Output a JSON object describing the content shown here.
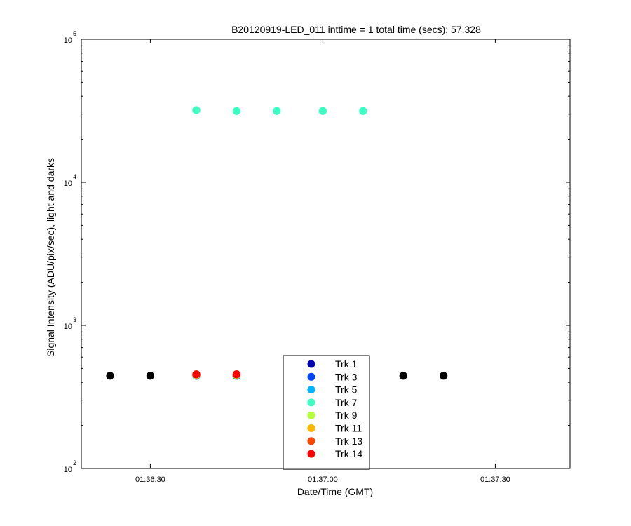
{
  "chart_data": {
    "type": "scatter",
    "title": "B20120919-LED_011 inttime = 1 total time (secs): 57.328",
    "xlabel": "Date/Time (GMT)",
    "ylabel": "Signal Intensity (ADU/pix/sec), light and darks",
    "yscale": "log",
    "ylim": [
      100,
      100000
    ],
    "xlim": [
      "01:36:18",
      "01:37:43"
    ],
    "x_ticks": [
      "01:36:30",
      "01:37:00",
      "01:37:30"
    ],
    "y_ticks": [
      {
        "value": 100,
        "base": "10",
        "exp": "2"
      },
      {
        "value": 1000,
        "base": "10",
        "exp": "3"
      },
      {
        "value": 10000,
        "base": "10",
        "exp": "4"
      },
      {
        "value": 100000,
        "base": "10",
        "exp": "5"
      }
    ],
    "grid": false,
    "legend_position": "bottom-center",
    "series": [
      {
        "name": "Trk 1",
        "color": "#0000b4",
        "x": [
          "01:36:38",
          "01:36:45",
          "01:37:07"
        ],
        "y": [
          445,
          445,
          445
        ]
      },
      {
        "name": "Trk 3",
        "color": "#0046ff",
        "x": [
          "01:36:38",
          "01:36:45",
          "01:37:07"
        ],
        "y": [
          445,
          445,
          445
        ]
      },
      {
        "name": "Trk 5",
        "color": "#00b4ff",
        "x": [
          "01:36:38",
          "01:36:45",
          "01:37:07"
        ],
        "y": [
          445,
          445,
          445
        ]
      },
      {
        "name": "Trk 7",
        "color": "#3cffc3",
        "x": [
          "01:36:38",
          "01:36:45",
          "01:36:52",
          "01:37:00",
          "01:37:07"
        ],
        "y": [
          32000,
          31500,
          31500,
          31500,
          31500
        ]
      },
      {
        "name": "Trk 9",
        "color": "#b4ff3c",
        "x": [
          "01:36:38",
          "01:36:45",
          "01:37:07"
        ],
        "y": [
          450,
          450,
          450
        ]
      },
      {
        "name": "Trk 11",
        "color": "#ffb400",
        "x": [
          "01:36:38",
          "01:36:45",
          "01:37:07"
        ],
        "y": [
          452,
          452,
          452
        ]
      },
      {
        "name": "Trk 13",
        "color": "#ff4600",
        "x": [
          "01:36:38",
          "01:36:45",
          "01:37:07"
        ],
        "y": [
          455,
          455,
          455
        ]
      },
      {
        "name": "Trk 14",
        "color": "#ff0000",
        "x": [
          "01:36:38",
          "01:36:45",
          "01:37:07"
        ],
        "y": [
          455,
          455,
          455
        ]
      }
    ],
    "darks": {
      "color": "#000000",
      "x": [
        "01:36:23",
        "01:36:30",
        "01:37:14",
        "01:37:21"
      ],
      "y": [
        445,
        445,
        445,
        445
      ]
    }
  }
}
